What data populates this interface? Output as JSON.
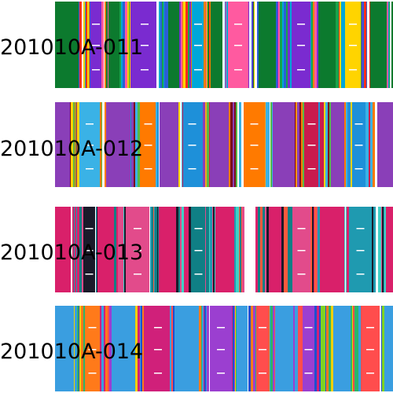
{
  "products": [
    {
      "code": "201010A-011",
      "pattern": "serape-green",
      "colors": [
        "#0c7a2e",
        "#ff2d1a",
        "#ffd400",
        "#2a5fd6",
        "#ff5aa0",
        "#ffffff",
        "#19a34a",
        "#f07f00",
        "#7a2bd0",
        "#00a7d8"
      ]
    },
    {
      "code": "201010A-012",
      "pattern": "serape-purple-maroon",
      "colors": [
        "#8a3fb8",
        "#7a0d1e",
        "#ffd400",
        "#3ab2e6",
        "#ff7a00",
        "#ffffff",
        "#58b947",
        "#c91b4e",
        "#1e90d9",
        "#f5a21d"
      ]
    },
    {
      "code": "201010A-013",
      "pattern": "serape-pink-teal",
      "colors": [
        "#d9206a",
        "#0f7f85",
        "#ff5a3c",
        "#1a1a2a",
        "#3fd1c6",
        "#ffffff",
        "#e24b8b",
        "#1f9ab0"
      ]
    },
    {
      "code": "201010A-014",
      "pattern": "serape-rainbow",
      "colors": [
        "#3a9ee0",
        "#d0207a",
        "#7ed321",
        "#f0d000",
        "#ff7a1a",
        "#1e4fd0",
        "#2bb56a",
        "#ffffff",
        "#ff4d4d",
        "#9b3fd0"
      ]
    }
  ]
}
